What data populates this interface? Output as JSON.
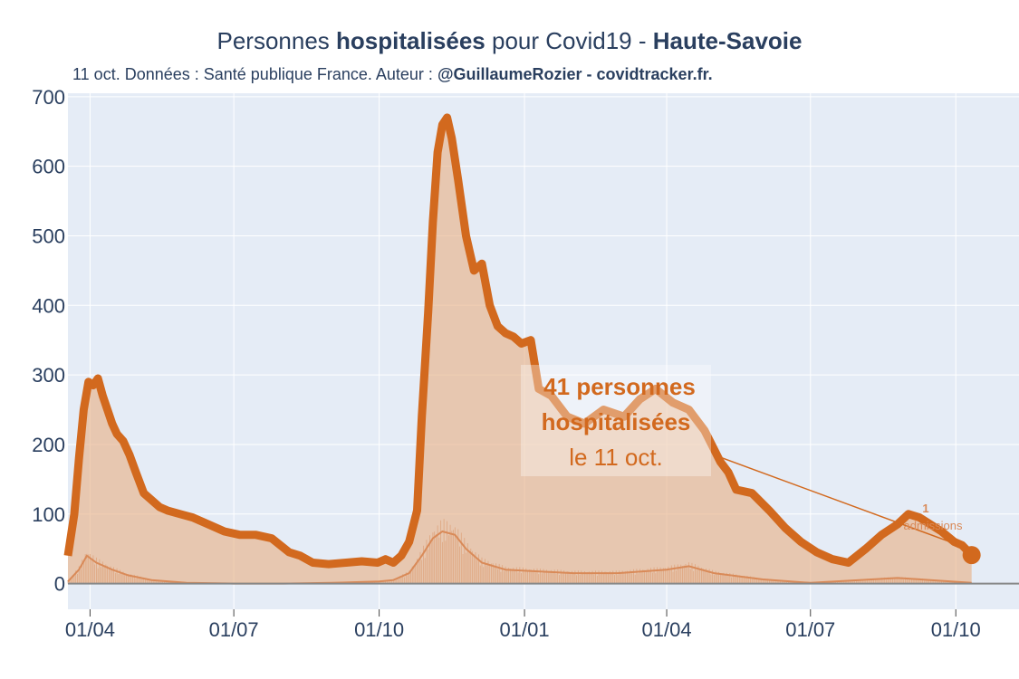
{
  "header": {
    "title_pre": "Personnes ",
    "title_bold": "hospitalisées",
    "title_mid": " pour Covid19 - ",
    "title_region": "Haute-Savoie",
    "subtitle_pre": "11 oct. Données : Santé publique France. Auteur : ",
    "subtitle_bold": "@GuillaumeRozier - covidtracker.fr."
  },
  "colors": {
    "plot_bg": "#e5ecf6",
    "line": "#d2691e",
    "fill": "#e8b48a",
    "admissions": "#d98a58",
    "grid": "#ffffff",
    "zero_line": "#888888"
  },
  "chart_data": {
    "type": "area",
    "title": "Personnes hospitalisées pour Covid19 - Haute-Savoie",
    "x_axis": {
      "ticks": [
        "01/04",
        "01/07",
        "01/10",
        "01/01",
        "01/04",
        "01/07",
        "01/10"
      ],
      "tick_dates": [
        "2020-04-01",
        "2020-07-01",
        "2020-10-01",
        "2021-01-01",
        "2021-04-01",
        "2021-07-01",
        "2021-10-01"
      ],
      "range": [
        "2020-03-18",
        "2021-11-10"
      ]
    },
    "y_axis": {
      "ticks": [
        0,
        100,
        200,
        300,
        400,
        500,
        600,
        700
      ],
      "range": [
        -37,
        705
      ]
    },
    "grid": true,
    "series": [
      {
        "name": "hospitalisations",
        "style": "thick line with filled area",
        "x": [
          "2020-03-18",
          "2020-03-20",
          "2020-03-22",
          "2020-03-25",
          "2020-03-28",
          "2020-03-31",
          "2020-04-03",
          "2020-04-06",
          "2020-04-09",
          "2020-04-12",
          "2020-04-15",
          "2020-04-18",
          "2020-04-22",
          "2020-04-26",
          "2020-04-30",
          "2020-05-05",
          "2020-05-10",
          "2020-05-15",
          "2020-05-20",
          "2020-05-28",
          "2020-06-05",
          "2020-06-15",
          "2020-06-25",
          "2020-07-05",
          "2020-07-15",
          "2020-07-25",
          "2020-08-05",
          "2020-08-12",
          "2020-08-20",
          "2020-08-30",
          "2020-09-10",
          "2020-09-20",
          "2020-09-30",
          "2020-10-05",
          "2020-10-10",
          "2020-10-15",
          "2020-10-20",
          "2020-10-25",
          "2020-10-28",
          "2020-11-01",
          "2020-11-04",
          "2020-11-07",
          "2020-11-10",
          "2020-11-13",
          "2020-11-16",
          "2020-11-20",
          "2020-11-25",
          "2020-11-30",
          "2020-12-05",
          "2020-12-10",
          "2020-12-15",
          "2020-12-20",
          "2020-12-25",
          "2020-12-30",
          "2021-01-05",
          "2021-01-10",
          "2021-01-18",
          "2021-01-28",
          "2021-02-08",
          "2021-02-20",
          "2021-03-05",
          "2021-03-15",
          "2021-03-25",
          "2021-04-05",
          "2021-04-15",
          "2021-04-25",
          "2021-05-05",
          "2021-05-10",
          "2021-05-15",
          "2021-05-25",
          "2021-06-05",
          "2021-06-15",
          "2021-06-25",
          "2021-07-05",
          "2021-07-15",
          "2021-07-25",
          "2021-08-05",
          "2021-08-15",
          "2021-08-25",
          "2021-09-01",
          "2021-09-08",
          "2021-09-15",
          "2021-09-22",
          "2021-09-30",
          "2021-10-05",
          "2021-10-11"
        ],
        "y": [
          40,
          70,
          100,
          180,
          250,
          290,
          285,
          295,
          270,
          250,
          230,
          215,
          205,
          185,
          160,
          130,
          120,
          110,
          105,
          100,
          95,
          85,
          75,
          70,
          70,
          65,
          45,
          40,
          30,
          28,
          30,
          32,
          30,
          35,
          30,
          40,
          60,
          105,
          240,
          390,
          520,
          620,
          660,
          670,
          640,
          580,
          500,
          450,
          460,
          400,
          370,
          360,
          355,
          345,
          350,
          280,
          270,
          240,
          230,
          250,
          240,
          265,
          280,
          260,
          250,
          220,
          175,
          160,
          135,
          130,
          105,
          80,
          60,
          45,
          35,
          30,
          50,
          70,
          85,
          100,
          95,
          85,
          75,
          60,
          55,
          41
        ]
      },
      {
        "name": "admissions",
        "style": "thin line",
        "x": [
          "2020-03-18",
          "2020-03-25",
          "2020-03-30",
          "2020-04-05",
          "2020-04-15",
          "2020-04-25",
          "2020-05-10",
          "2020-06-01",
          "2020-07-01",
          "2020-08-01",
          "2020-09-01",
          "2020-10-01",
          "2020-10-10",
          "2020-10-20",
          "2020-10-28",
          "2020-11-04",
          "2020-11-10",
          "2020-11-18",
          "2020-11-25",
          "2020-12-05",
          "2020-12-20",
          "2021-01-05",
          "2021-02-01",
          "2021-03-01",
          "2021-04-01",
          "2021-04-15",
          "2021-05-01",
          "2021-06-01",
          "2021-07-01",
          "2021-08-01",
          "2021-08-25",
          "2021-09-15",
          "2021-10-11"
        ],
        "y": [
          3,
          20,
          40,
          30,
          20,
          12,
          5,
          1,
          0,
          0,
          1,
          3,
          5,
          15,
          40,
          65,
          75,
          70,
          50,
          30,
          20,
          18,
          15,
          15,
          20,
          25,
          15,
          6,
          1,
          5,
          8,
          5,
          1
        ]
      }
    ],
    "annotations": {
      "main_value": "41 personnes",
      "main_label": "hospitalisées",
      "main_date": "le 11 oct.",
      "admissions_value": "1",
      "admissions_label": "admissions"
    }
  }
}
